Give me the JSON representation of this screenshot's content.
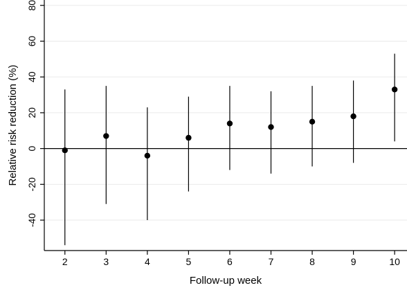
{
  "chart_data": {
    "type": "scatter",
    "subtype": "point-estimate-with-error-bars",
    "xlabel": "Follow-up week",
    "ylabel": "Relative risk reduction  (%)",
    "xlim": [
      1.5,
      10.3
    ],
    "ylim": [
      -57,
      83
    ],
    "x_ticks": [
      "2",
      "3",
      "4",
      "5",
      "6",
      "7",
      "8",
      "9",
      "10"
    ],
    "y_ticks": [
      "80",
      "60",
      "40",
      "20",
      "0",
      "-20",
      "-40"
    ],
    "points": [
      {
        "x": 2,
        "y": -1,
        "lower": -54,
        "upper": 33
      },
      {
        "x": 3,
        "y": 7,
        "lower": -31,
        "upper": 35
      },
      {
        "x": 4,
        "y": -4,
        "lower": -40,
        "upper": 23
      },
      {
        "x": 5,
        "y": 6,
        "lower": -24,
        "upper": 29
      },
      {
        "x": 6,
        "y": 14,
        "lower": -12,
        "upper": 35
      },
      {
        "x": 7,
        "y": 12,
        "lower": -14,
        "upper": 32
      },
      {
        "x": 8,
        "y": 15,
        "lower": -10,
        "upper": 35
      },
      {
        "x": 9,
        "y": 18,
        "lower": -8,
        "upper": 38
      },
      {
        "x": 10,
        "y": 33,
        "lower": 4,
        "upper": 53
      }
    ],
    "reference_line_y": 0,
    "grid": true,
    "legend": "none",
    "colors": {
      "marker": "#000000",
      "grid": "#eaeaea",
      "axis": "#000000"
    }
  }
}
